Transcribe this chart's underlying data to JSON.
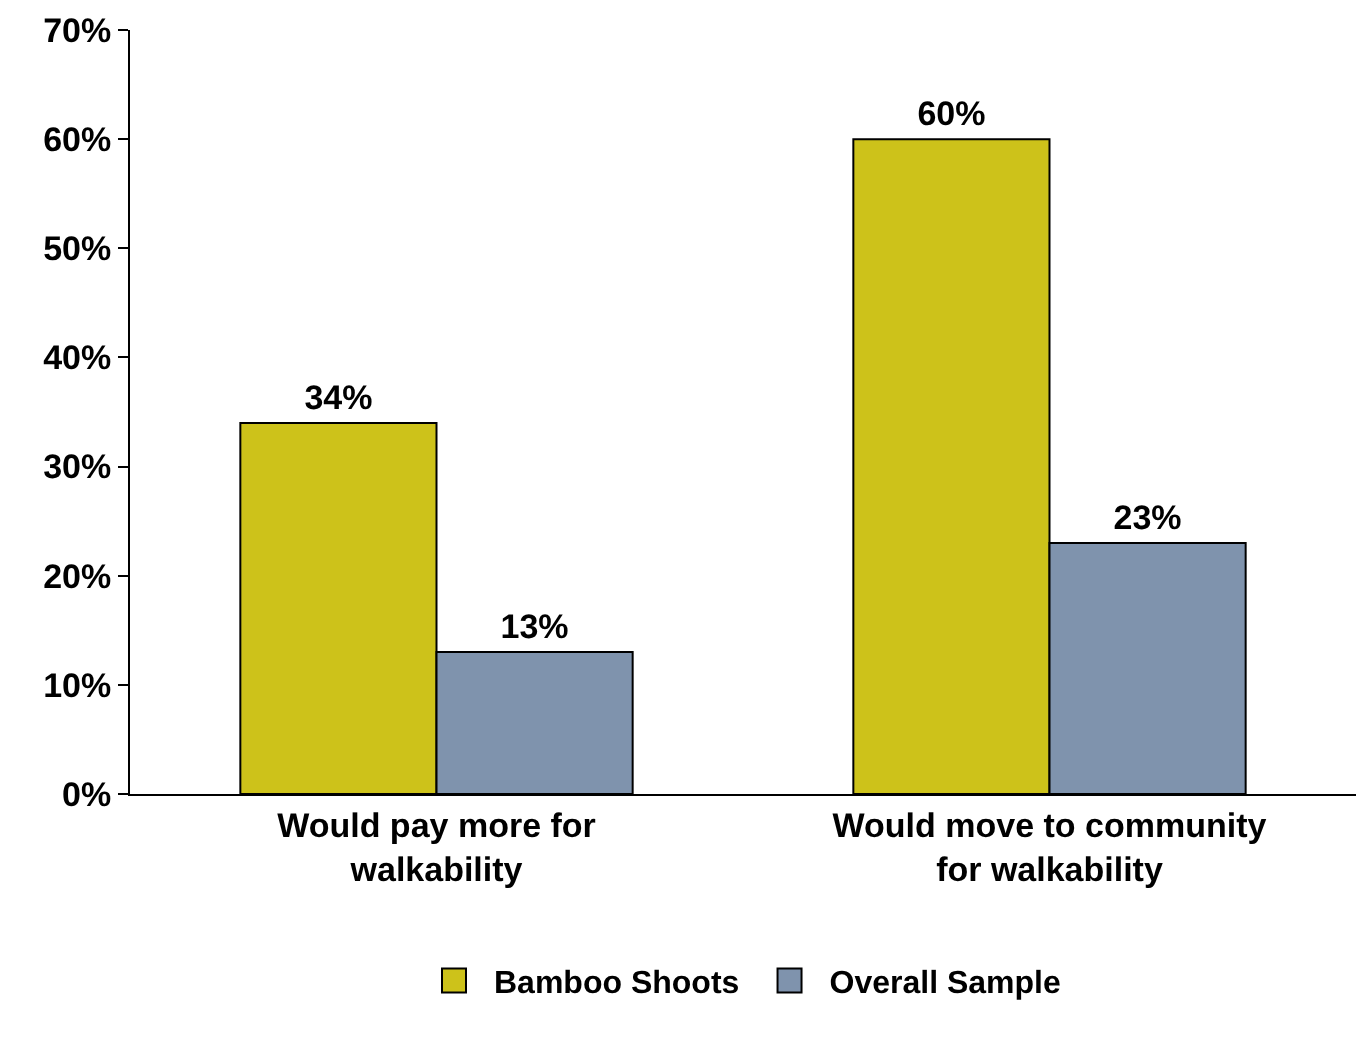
{
  "chart_data": {
    "type": "bar",
    "categories": [
      "Would pay more for walkability",
      "Would move to community for walkability"
    ],
    "series": [
      {
        "name": "Bamboo Shoots",
        "color": "#cdc21a",
        "values": [
          34,
          60
        ],
        "value_labels": [
          "34%",
          "60%"
        ]
      },
      {
        "name": "Overall Sample",
        "color": "#7f93ad",
        "values": [
          13,
          23
        ],
        "value_labels": [
          "13%",
          "23%"
        ]
      }
    ],
    "ylim": [
      0,
      70
    ],
    "yticks": [
      {
        "value": 0,
        "label": "0%"
      },
      {
        "value": 10,
        "label": "10%"
      },
      {
        "value": 20,
        "label": "20%"
      },
      {
        "value": 30,
        "label": "30%"
      },
      {
        "value": 40,
        "label": "40%"
      },
      {
        "value": 50,
        "label": "50%"
      },
      {
        "value": 60,
        "label": "60%"
      },
      {
        "value": 70,
        "label": "70%"
      }
    ],
    "legend": "bottom"
  }
}
